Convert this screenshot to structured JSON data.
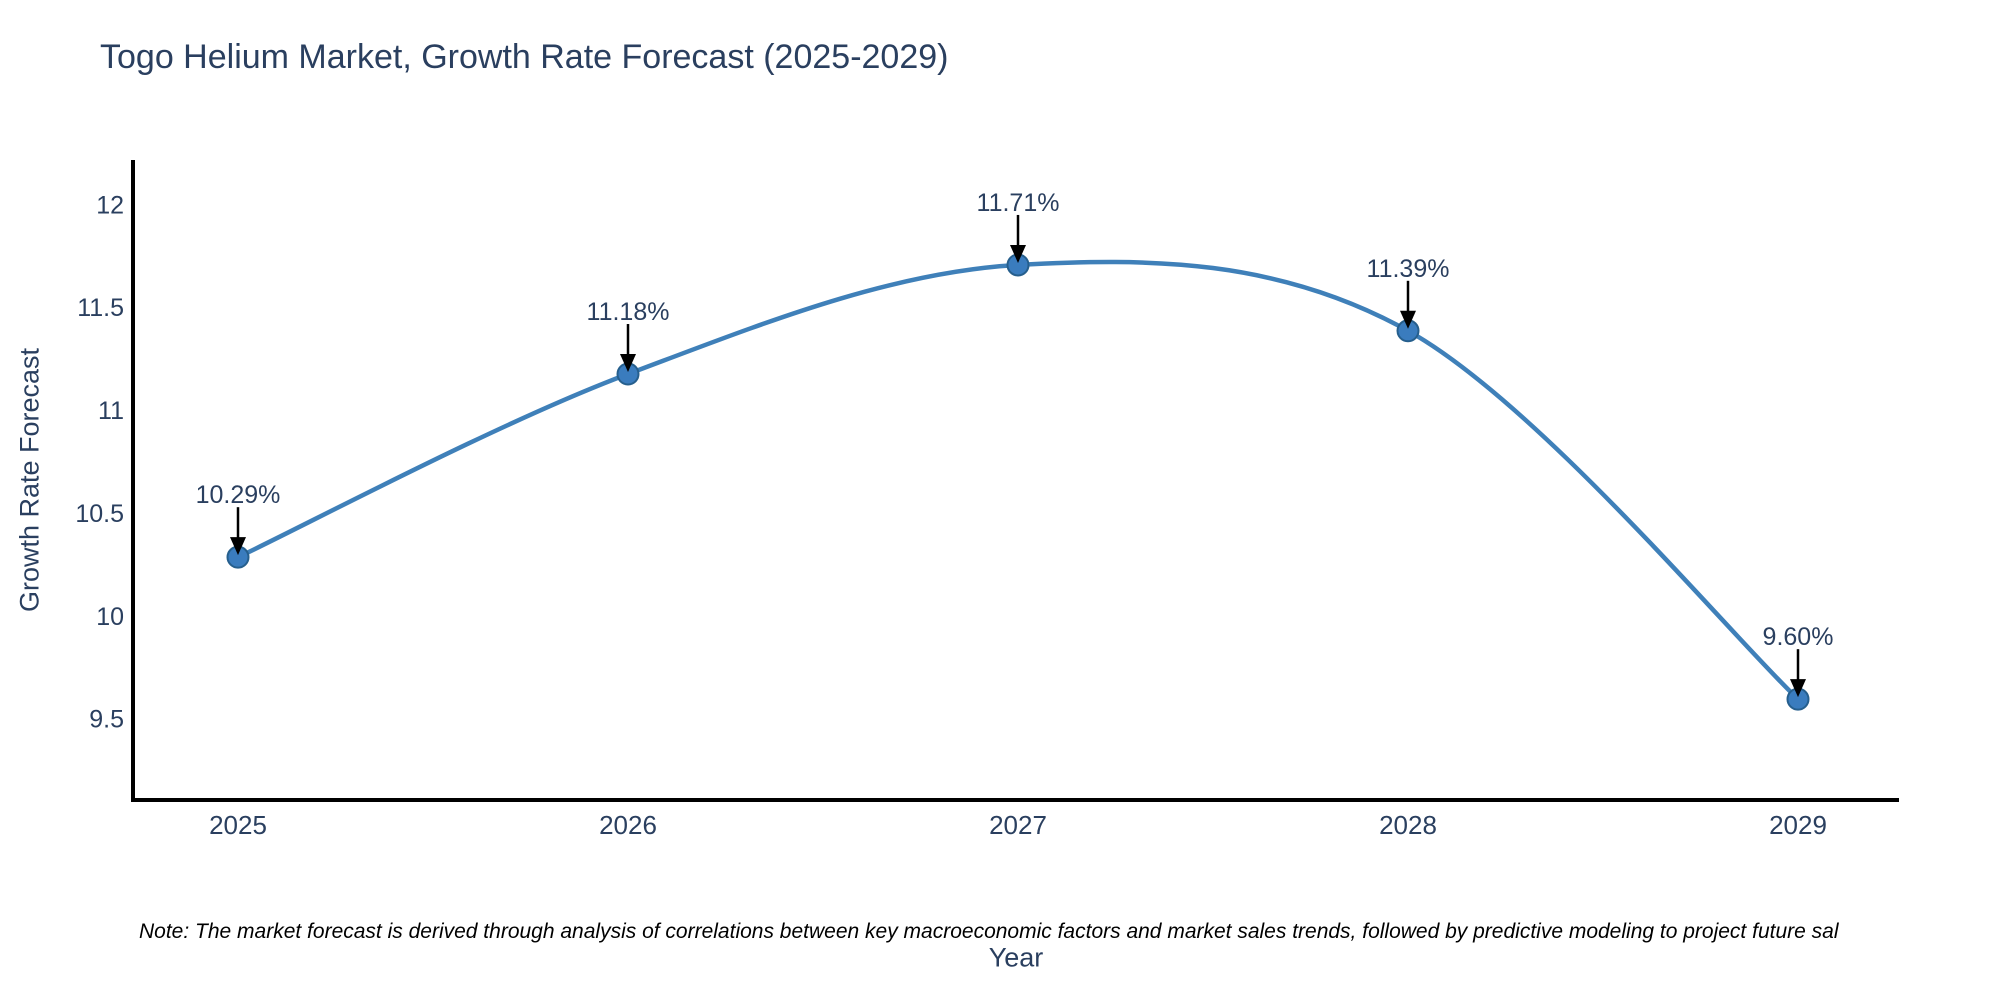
{
  "title": "Togo Helium Market, Growth Rate Forecast (2025-2029)",
  "note": "Note: The market forecast is derived through analysis of correlations between key macroeconomic factors and market sales trends, followed by predictive modeling to project future sal",
  "chart_data": {
    "type": "line",
    "title": "Togo Helium Market, Growth Rate Forecast (2025-2029)",
    "xlabel": "Year",
    "ylabel": "Growth Rate Forecast",
    "x": [
      2025,
      2026,
      2027,
      2028,
      2029
    ],
    "x_tick_labels": [
      "2025",
      "2026",
      "2027",
      "2028",
      "2029"
    ],
    "series": [
      {
        "name": "Growth Rate Forecast",
        "values": [
          10.29,
          11.18,
          11.71,
          11.39,
          9.6
        ]
      }
    ],
    "point_labels": [
      "10.29%",
      "11.18%",
      "11.71%",
      "11.39%",
      "9.60%"
    ],
    "y_ticks": [
      9.5,
      10,
      10.5,
      11,
      11.5,
      12
    ],
    "y_tick_labels": [
      "9.5",
      "10",
      "10.5",
      "11",
      "11.5",
      "12"
    ],
    "ylim": [
      9.11,
      12.22
    ],
    "grid": false,
    "legend_position": "none",
    "line_shape": "spline",
    "colors": {
      "line": "#3f80b9",
      "marker_fill": "#3a7cbe",
      "marker_edge": "#265f8d",
      "axis_line": "#000000",
      "tick_text": "#2a3f5f",
      "annotation_text": "#2a3f5f",
      "annotation_arrow": "#000000"
    }
  }
}
